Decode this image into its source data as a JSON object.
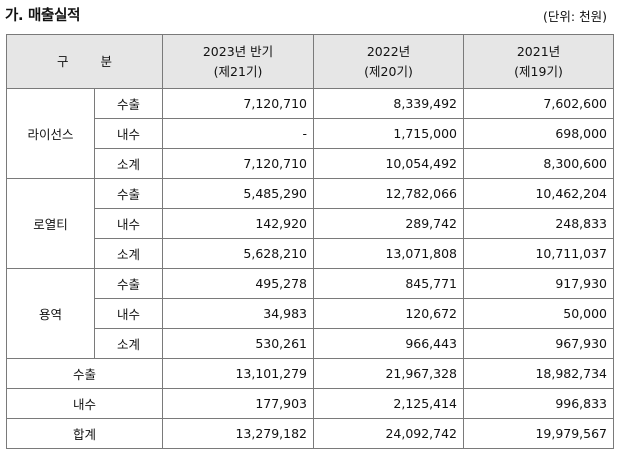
{
  "title": "가. 매출실적",
  "unit": "(단위: 천원)",
  "header": {
    "category": "구  분",
    "col1_year": "2023년 반기",
    "col1_term": "(제21기)",
    "col2_year": "2022년",
    "col2_term": "(제20기)",
    "col3_year": "2021년",
    "col3_term": "(제19기)"
  },
  "groups": [
    {
      "name": "라이선스",
      "rows": [
        {
          "type": "수출",
          "v2023": "7,120,710",
          "v2022": "8,339,492",
          "v2021": "7,602,600"
        },
        {
          "type": "내수",
          "v2023": "-",
          "v2022": "1,715,000",
          "v2021": "698,000"
        },
        {
          "type": "소계",
          "v2023": "7,120,710",
          "v2022": "10,054,492",
          "v2021": "8,300,600"
        }
      ]
    },
    {
      "name": "로열티",
      "rows": [
        {
          "type": "수출",
          "v2023": "5,485,290",
          "v2022": "12,782,066",
          "v2021": "10,462,204"
        },
        {
          "type": "내수",
          "v2023": "142,920",
          "v2022": "289,742",
          "v2021": "248,833"
        },
        {
          "type": "소계",
          "v2023": "5,628,210",
          "v2022": "13,071,808",
          "v2021": "10,711,037"
        }
      ]
    },
    {
      "name": "용역",
      "rows": [
        {
          "type": "수출",
          "v2023": "495,278",
          "v2022": "845,771",
          "v2021": "917,930"
        },
        {
          "type": "내수",
          "v2023": "34,983",
          "v2022": "120,672",
          "v2021": "50,000"
        },
        {
          "type": "소계",
          "v2023": "530,261",
          "v2022": "966,443",
          "v2021": "967,930"
        }
      ]
    }
  ],
  "totals": [
    {
      "label": "수출",
      "v2023": "13,101,279",
      "v2022": "21,967,328",
      "v2021": "18,982,734"
    },
    {
      "label": "내수",
      "v2023": "177,903",
      "v2022": "2,125,414",
      "v2021": "996,833"
    },
    {
      "label": "합계",
      "v2023": "13,279,182",
      "v2022": "24,092,742",
      "v2021": "19,979,567"
    }
  ]
}
